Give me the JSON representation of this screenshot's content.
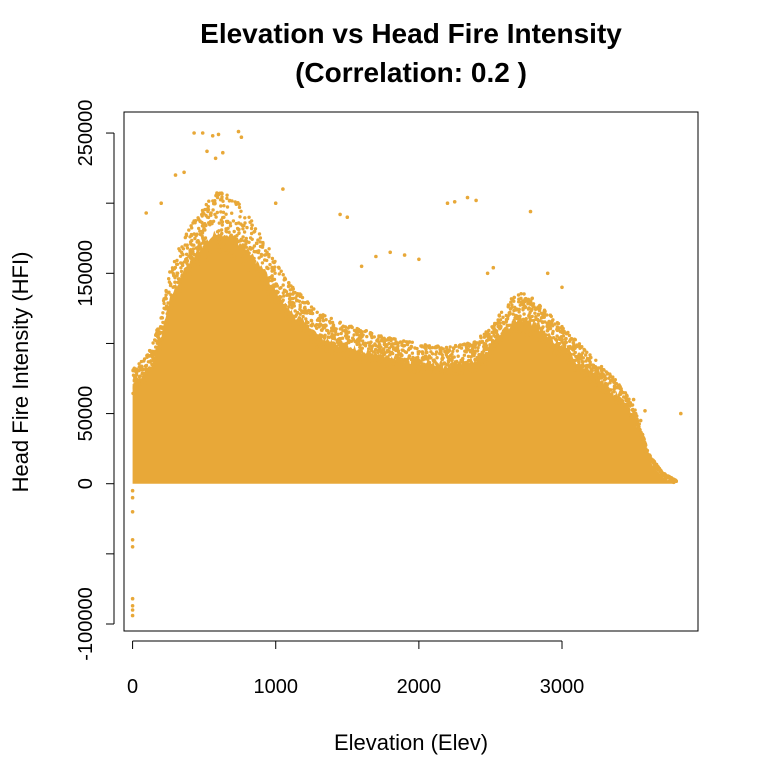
{
  "chart_data": {
    "type": "scatter",
    "title": [
      "Elevation vs Head Fire Intensity",
      "(Correlation: 0.2 )"
    ],
    "xlabel": "Elevation (Elev)",
    "ylabel": "Head Fire Intensity (HFI)",
    "xlim": [
      -60,
      3950
    ],
    "ylim": [
      -105000,
      265000
    ],
    "x_ticks": [
      0,
      1000,
      2000,
      3000
    ],
    "x_tick_labels": [
      "0",
      "1000",
      "2000",
      "3000"
    ],
    "y_ticks": [
      -100000,
      -50000,
      0,
      50000,
      100000,
      150000,
      200000,
      250000
    ],
    "y_tick_labels": [
      "-100000",
      "",
      "0",
      "50000",
      "",
      "150000",
      "",
      "250000"
    ],
    "grid": false,
    "point_color": "#E8A838",
    "envelope": {
      "x": [
        0,
        50,
        100,
        150,
        200,
        250,
        300,
        400,
        500,
        600,
        700,
        800,
        900,
        1000,
        1100,
        1200,
        1300,
        1400,
        1600,
        1800,
        2000,
        2200,
        2400,
        2500,
        2600,
        2700,
        2800,
        2900,
        3000,
        3100,
        3200,
        3300,
        3400,
        3500,
        3550,
        3600,
        3700,
        3800
      ],
      "y_max": [
        80000,
        85000,
        90000,
        100000,
        120000,
        145000,
        160000,
        180000,
        195000,
        205000,
        200000,
        190000,
        175000,
        155000,
        140000,
        130000,
        120000,
        115000,
        108000,
        102000,
        98000,
        96000,
        100000,
        110000,
        125000,
        135000,
        130000,
        120000,
        110000,
        100000,
        90000,
        80000,
        70000,
        55000,
        40000,
        22000,
        8000,
        2000
      ]
    },
    "outliers": [
      {
        "x": 0,
        "y": -5000
      },
      {
        "x": 0,
        "y": -10000
      },
      {
        "x": 0,
        "y": -20000
      },
      {
        "x": 0,
        "y": -40000
      },
      {
        "x": 0,
        "y": -45000
      },
      {
        "x": 0,
        "y": -82000
      },
      {
        "x": 0,
        "y": -87000
      },
      {
        "x": 0,
        "y": -90000
      },
      {
        "x": 0,
        "y": -94000
      },
      {
        "x": 430,
        "y": 250000
      },
      {
        "x": 490,
        "y": 250000
      },
      {
        "x": 560,
        "y": 248000
      },
      {
        "x": 600,
        "y": 249000
      },
      {
        "x": 740,
        "y": 251000
      },
      {
        "x": 760,
        "y": 247000
      },
      {
        "x": 520,
        "y": 237000
      },
      {
        "x": 580,
        "y": 232000
      },
      {
        "x": 630,
        "y": 236000
      },
      {
        "x": 300,
        "y": 220000
      },
      {
        "x": 360,
        "y": 222000
      },
      {
        "x": 200,
        "y": 200000
      },
      {
        "x": 95,
        "y": 193000
      },
      {
        "x": 1050,
        "y": 210000
      },
      {
        "x": 1000,
        "y": 200000
      },
      {
        "x": 1450,
        "y": 192000
      },
      {
        "x": 1500,
        "y": 190000
      },
      {
        "x": 2200,
        "y": 200000
      },
      {
        "x": 2250,
        "y": 201000
      },
      {
        "x": 2340,
        "y": 204000
      },
      {
        "x": 2400,
        "y": 202000
      },
      {
        "x": 2780,
        "y": 194000
      },
      {
        "x": 1700,
        "y": 162000
      },
      {
        "x": 1800,
        "y": 165000
      },
      {
        "x": 1900,
        "y": 163000
      },
      {
        "x": 2000,
        "y": 160000
      },
      {
        "x": 1600,
        "y": 155000
      },
      {
        "x": 2480,
        "y": 150000
      },
      {
        "x": 2520,
        "y": 154000
      },
      {
        "x": 2900,
        "y": 150000
      },
      {
        "x": 3000,
        "y": 140000
      },
      {
        "x": 3650,
        "y": 8000
      },
      {
        "x": 3700,
        "y": 4000
      },
      {
        "x": 3760,
        "y": 2000
      },
      {
        "x": 3780,
        "y": 1000
      },
      {
        "x": 3830,
        "y": 50000
      },
      {
        "x": 3580,
        "y": 52000
      },
      {
        "x": 3550,
        "y": 45000
      },
      {
        "x": 3500,
        "y": 60000
      }
    ]
  }
}
